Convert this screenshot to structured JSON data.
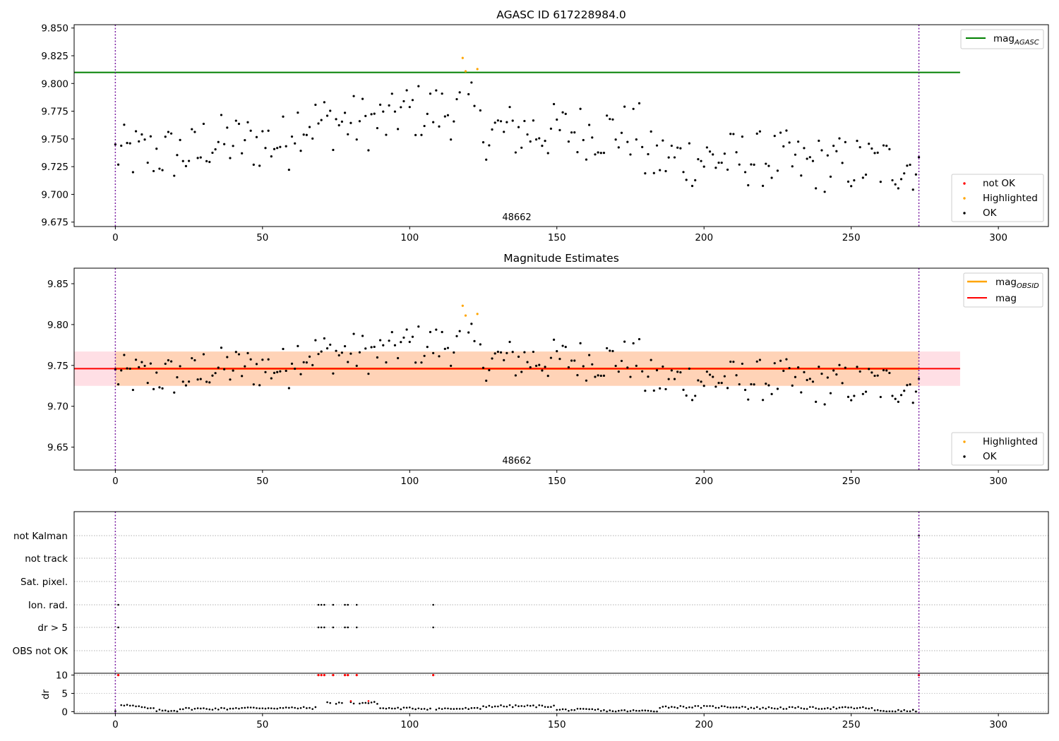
{
  "chart_data": [
    {
      "id": "agasc",
      "type": "scatter",
      "title": "AGASC ID 617228984.0",
      "xlim": [
        -14,
        317
      ],
      "ylim": [
        9.671,
        9.853
      ],
      "xticks": [
        0,
        50,
        100,
        150,
        200,
        250,
        300
      ],
      "xtick_labels": [
        "0",
        "50",
        "100",
        "150",
        "200",
        "250",
        "300"
      ],
      "yticks": [
        9.675,
        9.7,
        9.725,
        9.75,
        9.775,
        9.8,
        9.825,
        9.85
      ],
      "ytick_labels": [
        "9.675",
        "9.700",
        "9.725",
        "9.750",
        "9.775",
        "9.800",
        "9.825",
        "9.850"
      ],
      "obsid_label": "48662",
      "vlines": [
        0,
        273
      ],
      "hlines": [
        {
          "name": "mag",
          "subscript": "AGASC",
          "y": 9.81,
          "x0": -14,
          "x1": 287,
          "color": "#008000"
        }
      ],
      "legend_lines": [
        {
          "label": "mag",
          "subscript": "AGASC",
          "color": "#008000"
        }
      ],
      "legend_markers": [
        {
          "label": "not OK",
          "color": "#ff0000"
        },
        {
          "label": "Highlighted",
          "color": "#ffa500"
        },
        {
          "label": "OK",
          "color": "#000000"
        }
      ],
      "series": [
        {
          "name": "Highlighted",
          "color": "#ffa500",
          "x": [
            118,
            119,
            123
          ],
          "y": [
            9.823,
            9.811,
            9.813
          ]
        }
      ]
    },
    {
      "id": "estimates",
      "type": "scatter",
      "title": "Magnitude Estimates",
      "xlim": [
        -14,
        317
      ],
      "ylim": [
        9.622,
        9.869
      ],
      "xticks": [
        0,
        50,
        100,
        150,
        200,
        250,
        300
      ],
      "xtick_labels": [
        "0",
        "50",
        "100",
        "150",
        "200",
        "250",
        "300"
      ],
      "yticks": [
        9.65,
        9.7,
        9.75,
        9.8,
        9.85
      ],
      "ytick_labels": [
        "9.65",
        "9.70",
        "9.75",
        "9.80",
        "9.85"
      ],
      "obsid_label": "48662",
      "vlines": [
        0,
        273
      ],
      "bands": [
        {
          "y0": 9.725,
          "y1": 9.767,
          "x0": -14,
          "x1": 287,
          "color": "#ffc0cb",
          "opacity": 0.5
        },
        {
          "y0": 9.725,
          "y1": 9.767,
          "x0": 0,
          "x1": 273,
          "color": "#ffa500",
          "opacity": 0.2
        }
      ],
      "hlines": [
        {
          "name": "mag",
          "subscript": "OBSID",
          "y": 9.746,
          "x0": 0,
          "x1": 273,
          "color": "#ffa500"
        },
        {
          "name": "mag",
          "subscript": "",
          "y": 9.746,
          "x0": -14,
          "x1": 287,
          "color": "#ff0000"
        }
      ],
      "legend_lines": [
        {
          "label": "mag",
          "subscript": "OBSID",
          "color": "#ffa500"
        },
        {
          "label": "mag",
          "subscript": "",
          "color": "#ff0000"
        }
      ],
      "legend_markers": [
        {
          "label": "Highlighted",
          "color": "#ffa500"
        },
        {
          "label": "OK",
          "color": "#000000"
        }
      ],
      "series": [
        {
          "name": "Highlighted",
          "color": "#ffa500",
          "x": [
            118,
            119,
            123
          ],
          "y": [
            9.823,
            9.811,
            9.813
          ]
        }
      ]
    },
    {
      "id": "flags",
      "type": "scatter",
      "xlim": [
        -14,
        317
      ],
      "xticks": [
        0,
        50,
        100,
        150,
        200,
        250,
        300
      ],
      "xtick_labels": [
        "0",
        "50",
        "100",
        "150",
        "200",
        "250",
        "300"
      ],
      "vlines": [
        0,
        273
      ],
      "flag_labels": [
        "not Kalman",
        "not track",
        "Sat. pixel.",
        "Ion. rad.",
        "dr > 5",
        "OBS not OK"
      ],
      "flags": {
        "Ion. rad.": [
          1,
          69,
          70,
          71,
          74,
          78,
          79,
          82,
          108
        ],
        "dr > 5": [
          1,
          69,
          70,
          71,
          74,
          78,
          79,
          82,
          108
        ],
        "not Kalman": [
          273
        ]
      },
      "dr_ylim": [
        -0.5,
        10.5
      ],
      "dr_yticks": [
        0,
        5,
        10
      ],
      "dr_ytick_labels": [
        "0",
        "5",
        "10"
      ],
      "dr_ylabel": "dr",
      "dr_high_points": [
        1,
        69,
        70,
        71,
        74,
        78,
        79,
        82,
        108,
        273
      ],
      "dr_high_value": 10,
      "dr_red_points": [
        {
          "x": 80,
          "y": 2.9
        },
        {
          "x": 86,
          "y": 2.9
        }
      ]
    }
  ]
}
